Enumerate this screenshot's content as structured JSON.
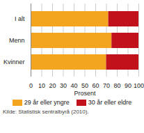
{
  "chart_data": {
    "type": "bar",
    "orientation": "horizontal",
    "stacked": true,
    "grid": true,
    "legend": "bottom",
    "caption": "Kilde: Statistisk sentralbyrå (2010).",
    "x_label": "Prosent",
    "categories": [
      "I alt",
      "Menn",
      "Kvinner"
    ],
    "series": [
      {
        "name": "29 år eller yngre",
        "color": "#f3a51f",
        "values": [
          72,
          75,
          70
        ]
      },
      {
        "name": "30 år eller eldre",
        "color": "#c1121c",
        "values": [
          28,
          25,
          30
        ]
      }
    ],
    "xlim": [
      0,
      100
    ],
    "xticks": [
      0,
      10,
      20,
      30,
      40,
      50,
      60,
      70,
      80,
      90,
      100
    ]
  }
}
